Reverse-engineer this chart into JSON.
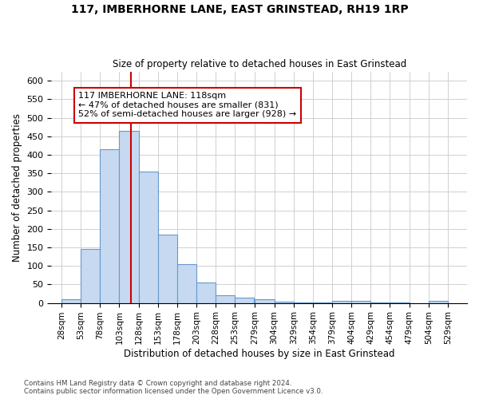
{
  "title": "117, IMBERHORNE LANE, EAST GRINSTEAD, RH19 1RP",
  "subtitle": "Size of property relative to detached houses in East Grinstead",
  "xlabel": "Distribution of detached houses by size in East Grinstead",
  "ylabel": "Number of detached properties",
  "footnote1": "Contains HM Land Registry data © Crown copyright and database right 2024.",
  "footnote2": "Contains public sector information licensed under the Open Government Licence v3.0.",
  "annotation_line1": "117 IMBERHORNE LANE: 118sqm",
  "annotation_line2": "← 47% of detached houses are smaller (831)",
  "annotation_line3": "52% of semi-detached houses are larger (928) →",
  "property_size": 118,
  "bar_lefts": [
    28,
    53,
    78,
    103,
    128,
    153,
    178,
    203,
    228,
    253,
    279,
    304,
    329,
    354,
    379,
    404,
    429,
    454,
    479,
    504
  ],
  "bar_heights": [
    10,
    145,
    415,
    465,
    355,
    185,
    105,
    55,
    20,
    15,
    10,
    3,
    2,
    2,
    5,
    5,
    2,
    1,
    0,
    5
  ],
  "x_tick_labels": [
    "28sqm",
    "53sqm",
    "78sqm",
    "103sqm",
    "128sqm",
    "153sqm",
    "178sqm",
    "203sqm",
    "228sqm",
    "253sqm",
    "279sqm",
    "304sqm",
    "329sqm",
    "354sqm",
    "379sqm",
    "404sqm",
    "429sqm",
    "454sqm",
    "479sqm",
    "504sqm",
    "529sqm"
  ],
  "bar_color": "#c6d9f0",
  "bar_edge_color": "#6699cc",
  "vline_x": 118,
  "vline_color": "#cc0000",
  "ylim": [
    0,
    625
  ],
  "yticks": [
    0,
    50,
    100,
    150,
    200,
    250,
    300,
    350,
    400,
    450,
    500,
    550,
    600
  ],
  "annotation_box_edgecolor": "#cc0000",
  "background_color": "#ffffff",
  "grid_color": "#d0d0d0"
}
